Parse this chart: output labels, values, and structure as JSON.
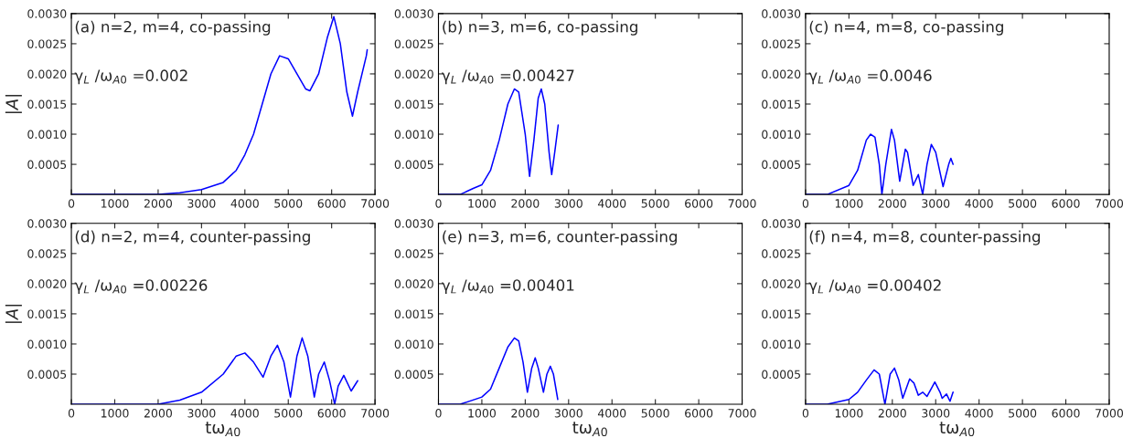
{
  "chart_data": [
    {
      "type": "line",
      "ylabel": "|A|",
      "annotations": [
        "(a) n=2, m=4, co-passing",
        "γ$_{L}$ /ω$_{A0}$ =0.002"
      ],
      "xlim": [
        0,
        7000
      ],
      "ylim": [
        0,
        0.003
      ],
      "xticks": [
        0,
        1000,
        2000,
        3000,
        4000,
        5000,
        6000,
        7000
      ],
      "yticks": [
        {
          "value": 0.0005,
          "label": "0.0005"
        },
        {
          "value": 0.001,
          "label": "0.0010"
        },
        {
          "value": 0.0015,
          "label": "0.0015"
        },
        {
          "value": 0.002,
          "label": "0.0020"
        },
        {
          "value": 0.0025,
          "label": "0.0025"
        },
        {
          "value": 0.003,
          "label": "0.0030"
        }
      ],
      "x": [
        0,
        1000,
        2000,
        2500,
        3000,
        3500,
        3800,
        4000,
        4200,
        4400,
        4600,
        4800,
        5000,
        5200,
        5400,
        5500,
        5700,
        5900,
        6050,
        6200,
        6350,
        6480,
        6600,
        6800,
        6820
      ],
      "series": [
        {
          "color": "#0000ff",
          "values": [
            0,
            0,
            0,
            3e-05,
            8e-05,
            0.0002,
            0.0004,
            0.00066,
            0.001,
            0.0015,
            0.002,
            0.0023,
            0.00225,
            0.002,
            0.00175,
            0.00172,
            0.002,
            0.0026,
            0.00295,
            0.0025,
            0.0017,
            0.0013,
            0.0017,
            0.0023,
            0.0024
          ]
        }
      ]
    },
    {
      "type": "line",
      "annotations": [
        "(b) n=3, m=6, co-passing",
        "γ$_{L}$ /ω$_{A0}$ =0.00427"
      ],
      "xlim": [
        0,
        7000
      ],
      "ylim": [
        0,
        0.003
      ],
      "xticks": [
        0,
        1000,
        2000,
        3000,
        4000,
        5000,
        6000,
        7000
      ],
      "yticks": [
        {
          "value": 0.0005,
          "label": "0.0005"
        },
        {
          "value": 0.001,
          "label": "0.0010"
        },
        {
          "value": 0.0015,
          "label": "0.0015"
        },
        {
          "value": 0.002,
          "label": "0.0020"
        },
        {
          "value": 0.0025,
          "label": "0.0025"
        },
        {
          "value": 0.003,
          "label": "0.0030"
        }
      ],
      "x": [
        0,
        500,
        800,
        1000,
        1200,
        1400,
        1600,
        1750,
        1850,
        2000,
        2100,
        2200,
        2300,
        2370,
        2450,
        2550,
        2610,
        2680,
        2760
      ],
      "series": [
        {
          "color": "#0000ff",
          "values": [
            0,
            0,
            0.0001,
            0.00016,
            0.0004,
            0.0009,
            0.0015,
            0.00175,
            0.0017,
            0.001,
            0.0003,
            0.0009,
            0.0016,
            0.00175,
            0.0015,
            0.0007,
            0.00033,
            0.0007,
            0.00115
          ]
        }
      ]
    },
    {
      "type": "line",
      "annotations": [
        "(c) n=4, m=8, co-passing",
        "γ$_{L}$ /ω$_{A0}$ =0.0046"
      ],
      "xlim": [
        0,
        7000
      ],
      "ylim": [
        0,
        0.003
      ],
      "xticks": [
        0,
        1000,
        2000,
        3000,
        4000,
        5000,
        6000,
        7000
      ],
      "yticks": [
        {
          "value": 0.0005,
          "label": "0.0005"
        },
        {
          "value": 0.001,
          "label": "0.0010"
        },
        {
          "value": 0.0015,
          "label": "0.0015"
        },
        {
          "value": 0.002,
          "label": "0.0020"
        },
        {
          "value": 0.0025,
          "label": "0.0025"
        },
        {
          "value": 0.003,
          "label": "0.0030"
        }
      ],
      "x": [
        0,
        500,
        1000,
        1200,
        1400,
        1500,
        1600,
        1700,
        1760,
        1850,
        1980,
        2050,
        2170,
        2300,
        2350,
        2480,
        2600,
        2700,
        2800,
        2900,
        3000,
        3170,
        3300,
        3350,
        3400
      ],
      "series": [
        {
          "color": "#0000ff",
          "values": [
            0,
            0,
            0.00015,
            0.0004,
            0.0009,
            0.001,
            0.00095,
            0.0005,
            0,
            0.0005,
            0.00108,
            0.0009,
            0.00022,
            0.00075,
            0.0007,
            0.00015,
            0.00033,
            0,
            0.0005,
            0.00083,
            0.0007,
            0.00013,
            0.0005,
            0.0006,
            0.0005
          ]
        }
      ]
    },
    {
      "type": "line",
      "ylabel": "|A|",
      "xlabel": "tω$_{A0}$",
      "annotations": [
        "(d) n=2, m=4, counter-passing",
        "γ$_{L}$ /ω$_{A0}$ =0.00226"
      ],
      "xlim": [
        0,
        7000
      ],
      "ylim": [
        0,
        0.003
      ],
      "xticks": [
        0,
        1000,
        2000,
        3000,
        4000,
        5000,
        6000,
        7000
      ],
      "yticks": [
        {
          "value": 0.0005,
          "label": "0.0005"
        },
        {
          "value": 0.001,
          "label": "0.0010"
        },
        {
          "value": 0.0015,
          "label": "0.0015"
        },
        {
          "value": 0.002,
          "label": "0.0020"
        },
        {
          "value": 0.0025,
          "label": "0.0025"
        },
        {
          "value": 0.003,
          "label": "0.0030"
        }
      ],
      "x": [
        0,
        1000,
        2000,
        2500,
        3000,
        3500,
        3800,
        4000,
        4200,
        4420,
        4600,
        4750,
        4900,
        5050,
        5200,
        5320,
        5450,
        5600,
        5700,
        5830,
        5950,
        6070,
        6150,
        6280,
        6450,
        6600
      ],
      "series": [
        {
          "color": "#0000ff",
          "values": [
            0,
            0,
            0,
            7e-05,
            0.0002,
            0.0005,
            0.0008,
            0.00085,
            0.0007,
            0.00045,
            0.0008,
            0.00098,
            0.0007,
            0.00012,
            0.0008,
            0.0011,
            0.0008,
            0.00012,
            0.0005,
            0.0007,
            0.0004,
            0,
            0.0003,
            0.00048,
            0.00022,
            0.00039
          ]
        }
      ]
    },
    {
      "type": "line",
      "xlabel": "tω$_{A0}$",
      "annotations": [
        "(e) n=3, m=6, counter-passing",
        "γ$_{L}$ /ω$_{A0}$ =0.00401"
      ],
      "xlim": [
        0,
        7000
      ],
      "ylim": [
        0,
        0.003
      ],
      "xticks": [
        0,
        1000,
        2000,
        3000,
        4000,
        5000,
        6000,
        7000
      ],
      "yticks": [
        {
          "value": 0.0005,
          "label": "0.0005"
        },
        {
          "value": 0.001,
          "label": "0.0010"
        },
        {
          "value": 0.0015,
          "label": "0.0015"
        },
        {
          "value": 0.002,
          "label": "0.0020"
        },
        {
          "value": 0.0025,
          "label": "0.0025"
        },
        {
          "value": 0.003,
          "label": "0.0030"
        }
      ],
      "x": [
        0,
        500,
        1000,
        1200,
        1400,
        1600,
        1750,
        1850,
        1950,
        2050,
        2150,
        2230,
        2300,
        2420,
        2500,
        2580,
        2650,
        2750
      ],
      "series": [
        {
          "color": "#0000ff",
          "values": [
            0,
            0,
            0.00012,
            0.00025,
            0.0006,
            0.00095,
            0.0011,
            0.00105,
            0.0007,
            0.0002,
            0.0006,
            0.00077,
            0.0006,
            0.0002,
            0.0005,
            0.00063,
            0.0005,
            8e-05
          ]
        }
      ]
    },
    {
      "type": "line",
      "xlabel": "tω$_{A0}$",
      "annotations": [
        "(f) n=4, m=8, counter-passing",
        "γ$_{L}$ /ω$_{A0}$ =0.00402"
      ],
      "xlim": [
        0,
        7000
      ],
      "ylim": [
        0,
        0.003
      ],
      "xticks": [
        0,
        1000,
        2000,
        3000,
        4000,
        5000,
        6000,
        7000
      ],
      "yticks": [
        {
          "value": 0.0005,
          "label": "0.0005"
        },
        {
          "value": 0.001,
          "label": "0.0010"
        },
        {
          "value": 0.0015,
          "label": "0.0015"
        },
        {
          "value": 0.002,
          "label": "0.0020"
        },
        {
          "value": 0.0025,
          "label": "0.0025"
        },
        {
          "value": 0.003,
          "label": "0.0030"
        }
      ],
      "x": [
        0,
        500,
        1000,
        1200,
        1400,
        1580,
        1700,
        1830,
        1950,
        2050,
        2150,
        2240,
        2400,
        2500,
        2600,
        2700,
        2800,
        2980,
        3100,
        3150,
        3250,
        3330,
        3400
      ],
      "series": [
        {
          "color": "#0000ff",
          "values": [
            0,
            0,
            8e-05,
            0.0002,
            0.0004,
            0.00057,
            0.0005,
            0,
            0.0005,
            0.0006,
            0.0004,
            0.0001,
            0.00042,
            0.00035,
            0.00015,
            0.0002,
            0.00013,
            0.00037,
            0.0002,
            0.0001,
            0.00017,
            5e-05,
            0.0002
          ]
        }
      ]
    }
  ]
}
